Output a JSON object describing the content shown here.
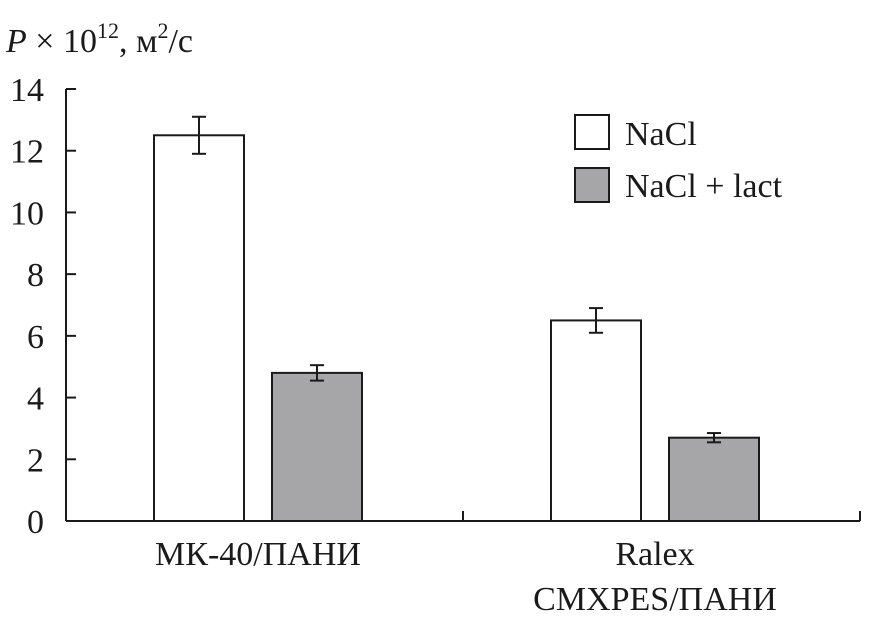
{
  "chart_data": {
    "type": "bar",
    "ylabel": {
      "symbol": "P",
      "times": " × 10",
      "exponent": "12",
      "unit_prefix": ", м",
      "unit_exponent": "2",
      "unit_suffix": "/с"
    },
    "ylim": [
      0,
      14
    ],
    "yticks": [
      "0",
      "2",
      "4",
      "6",
      "8",
      "10",
      "12",
      "14"
    ],
    "categories": [
      {
        "lines": [
          "МК-40/ПАНИ"
        ]
      },
      {
        "lines": [
          "Ralex",
          "CMXPES/ПАНИ"
        ]
      }
    ],
    "series": [
      {
        "name": "NaCl",
        "color": "#ffffff",
        "values": [
          12.5,
          6.5
        ],
        "errors": [
          0.6,
          0.4
        ]
      },
      {
        "name": "NaCl + lact",
        "color": "#a6a6a9",
        "values": [
          4.8,
          2.7
        ],
        "errors": [
          0.25,
          0.15
        ]
      }
    ],
    "legend_position": "top-right",
    "grid": false
  }
}
